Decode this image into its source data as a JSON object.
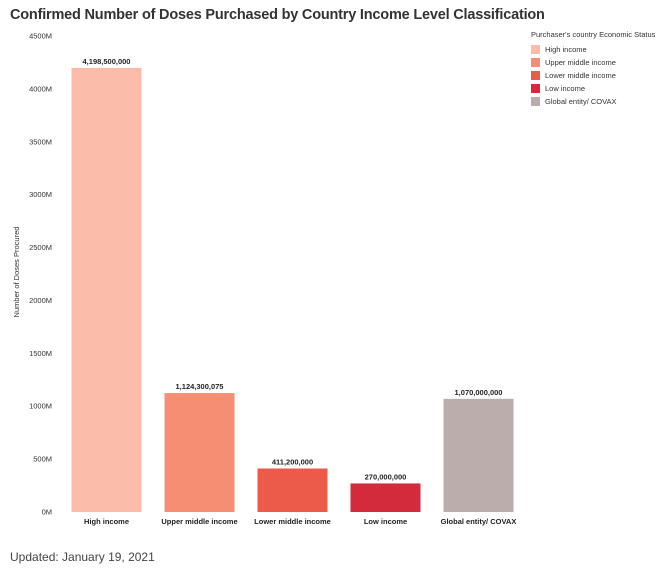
{
  "chart_data": {
    "type": "bar",
    "title": "Confirmed Number of Doses Purchased by Country Income Level Classification",
    "xlabel": "",
    "ylabel": "Number of Doses Procured",
    "ylim": [
      0,
      4500000000
    ],
    "yticks": [
      0,
      500000000,
      1000000000,
      1500000000,
      2000000000,
      2500000000,
      3000000000,
      3500000000,
      4000000000,
      4500000000
    ],
    "ytick_labels": [
      "0M",
      "500M",
      "1000M",
      "1500M",
      "2000M",
      "2500M",
      "3000M",
      "3500M",
      "4000M",
      "4500M"
    ],
    "categories": [
      "High income",
      "Upper middle income",
      "Lower middle income",
      "Low income",
      "Global entity/ COVAX"
    ],
    "values": [
      4198500000,
      1124300075,
      411200000,
      270000000,
      1070000000
    ],
    "value_labels": [
      "4,198,500,000",
      "1,124,300,075",
      "411,200,000",
      "270,000,000",
      "1,070,000,000"
    ],
    "colors": [
      "#fcbcaa",
      "#f58e73",
      "#ec5a4a",
      "#d32a3c",
      "#bbadab"
    ],
    "grid": false,
    "legend": {
      "title": "Purchaser's country Economic  Status",
      "position": "top-right",
      "items": [
        {
          "label": "High income",
          "color": "#fcbcaa"
        },
        {
          "label": "Upper middle income",
          "color": "#f58e73"
        },
        {
          "label": "Lower middle income",
          "color": "#ec5a4a"
        },
        {
          "label": "Low income",
          "color": "#d32a3c"
        },
        {
          "label": "Global entity/ COVAX",
          "color": "#bbadab"
        }
      ]
    }
  },
  "footer": {
    "updated": "Updated: January 19, 2021"
  }
}
